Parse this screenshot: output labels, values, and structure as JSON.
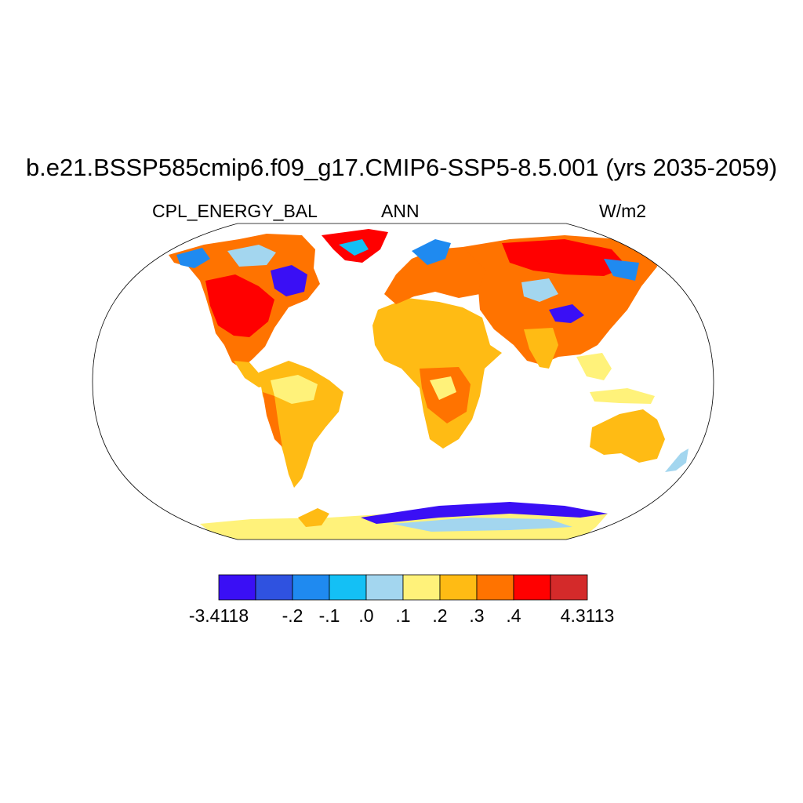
{
  "title": "b.e21.BSSP585cmip6.f09_g17.CMIP6-SSP5-8.5.001 (yrs 2035-2059)",
  "left_string": "CPL_ENERGY_BAL",
  "center_string": "ANN",
  "right_string": "W/m2",
  "colorbar": {
    "colors": [
      "#3a0ff5",
      "#2f52e0",
      "#1f8af0",
      "#14c0f5",
      "#a3d6ef",
      "#fff27a",
      "#ffbb14",
      "#ff7300",
      "#ff0000",
      "#d42a2a"
    ],
    "labels": [
      "-3.4118",
      "-.2",
      "-.1",
      ".0",
      ".1",
      ".2",
      ".3",
      ".4",
      "4.3113"
    ]
  }
}
